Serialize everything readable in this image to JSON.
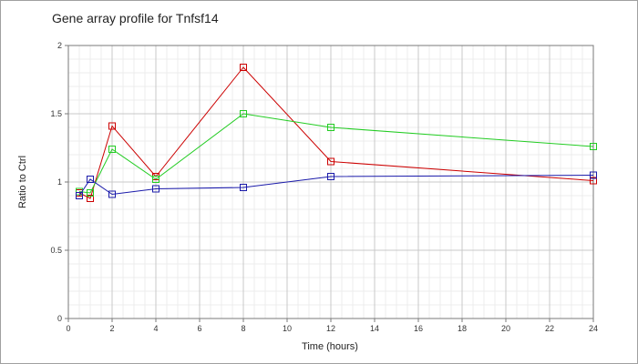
{
  "chart_data": {
    "type": "line",
    "title": "Gene array profile for Tnfsf14",
    "xlabel": "Time (hours)",
    "ylabel": "Ratio to Ctrl",
    "xlim": [
      0,
      24
    ],
    "ylim": [
      0,
      2
    ],
    "x_ticks": [
      0,
      2,
      4,
      6,
      8,
      10,
      12,
      14,
      16,
      18,
      20,
      22,
      24
    ],
    "y_ticks": [
      0,
      0.5,
      1,
      1.5,
      2
    ],
    "x_tick_labels": [
      "0",
      "2",
      "4",
      "6",
      "8",
      "10",
      "12",
      "14",
      "16",
      "18",
      "20",
      "22",
      "24"
    ],
    "y_tick_labels": [
      "0",
      "0.5",
      "1",
      "1.5",
      "2"
    ],
    "grid": true,
    "minor_grid": true,
    "marker": "square",
    "series": [
      {
        "color": "#cc0000",
        "x": [
          0.5,
          1,
          2,
          4,
          8,
          12,
          24
        ],
        "y": [
          0.92,
          0.88,
          1.41,
          1.04,
          1.84,
          1.15,
          1.01
        ]
      },
      {
        "color": "#22cc22",
        "x": [
          0.5,
          1,
          2,
          4,
          8,
          12,
          24
        ],
        "y": [
          0.93,
          0.92,
          1.24,
          1.02,
          1.5,
          1.4,
          1.26
        ]
      },
      {
        "color": "#1a1aaa",
        "x": [
          0.5,
          1,
          2,
          4,
          8,
          12,
          24
        ],
        "y": [
          0.9,
          1.02,
          0.91,
          0.95,
          0.96,
          1.04,
          1.05
        ]
      }
    ]
  }
}
